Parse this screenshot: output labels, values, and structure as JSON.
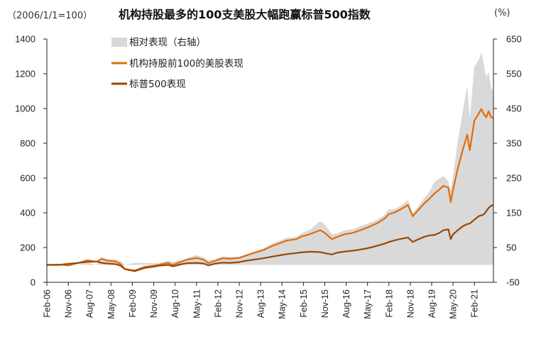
{
  "chart_data": {
    "type": "line",
    "title": "机构持股最多的100支美股大幅跑赢标普500指数",
    "base_note": "（2006/1/1=100）",
    "right_unit": "(%)",
    "y_left": {
      "min": 0,
      "max": 1400,
      "ticks": [
        "0",
        "200",
        "400",
        "600",
        "800",
        "1000",
        "1200",
        "1400"
      ]
    },
    "y_right": {
      "min": -50,
      "max": 650,
      "ticks": [
        "-50",
        "50",
        "150",
        "250",
        "350",
        "450",
        "550",
        "650"
      ]
    },
    "x_range": [
      2006.083,
      2021.75
    ],
    "x_ticks": [
      {
        "label": "Feb-06",
        "t": 2006.083
      },
      {
        "label": "Nov-06",
        "t": 2006.833
      },
      {
        "label": "Aug-07",
        "t": 2007.583
      },
      {
        "label": "May-08",
        "t": 2008.333
      },
      {
        "label": "Feb-09",
        "t": 2009.083
      },
      {
        "label": "Nov-09",
        "t": 2009.833
      },
      {
        "label": "Aug-10",
        "t": 2010.583
      },
      {
        "label": "May-11",
        "t": 2011.333
      },
      {
        "label": "Feb-12",
        "t": 2012.083
      },
      {
        "label": "Nov-12",
        "t": 2012.833
      },
      {
        "label": "Aug-13",
        "t": 2013.583
      },
      {
        "label": "May-14",
        "t": 2014.333
      },
      {
        "label": "Feb-15",
        "t": 2015.083
      },
      {
        "label": "Nov-15",
        "t": 2015.833
      },
      {
        "label": "Aug-16",
        "t": 2016.583
      },
      {
        "label": "May-17",
        "t": 2017.333
      },
      {
        "label": "Feb-18",
        "t": 2018.083
      },
      {
        "label": "Nov-18",
        "t": 2018.833
      },
      {
        "label": "Aug-19",
        "t": 2019.583
      },
      {
        "label": "May-20",
        "t": 2020.333
      },
      {
        "label": "Feb-21",
        "t": 2021.083
      }
    ],
    "legend": [
      "相对表现（右轴）",
      "机构持股前100的美股表现",
      "标普500表现"
    ],
    "colors": {
      "relative": "#d9d9d9",
      "top100": "#e36c0a",
      "sp500": "#974806"
    },
    "series": [
      {
        "name": "机构持股前100的美股表现",
        "axis": "left",
        "points": [
          [
            2006.08,
            100
          ],
          [
            2006.5,
            102
          ],
          [
            2006.83,
            98
          ],
          [
            2007.2,
            112
          ],
          [
            2007.5,
            127
          ],
          [
            2007.83,
            118
          ],
          [
            2008.0,
            135
          ],
          [
            2008.2,
            125
          ],
          [
            2008.5,
            120
          ],
          [
            2008.67,
            105
          ],
          [
            2008.83,
            75
          ],
          [
            2009.0,
            72
          ],
          [
            2009.17,
            68
          ],
          [
            2009.5,
            88
          ],
          [
            2009.83,
            95
          ],
          [
            2010.0,
            100
          ],
          [
            2010.33,
            112
          ],
          [
            2010.5,
            100
          ],
          [
            2010.83,
            120
          ],
          [
            2011.0,
            130
          ],
          [
            2011.33,
            140
          ],
          [
            2011.58,
            130
          ],
          [
            2011.75,
            110
          ],
          [
            2012.0,
            125
          ],
          [
            2012.25,
            138
          ],
          [
            2012.5,
            135
          ],
          [
            2012.83,
            140
          ],
          [
            2013.0,
            150
          ],
          [
            2013.33,
            168
          ],
          [
            2013.67,
            185
          ],
          [
            2014.0,
            210
          ],
          [
            2014.25,
            225
          ],
          [
            2014.5,
            240
          ],
          [
            2014.83,
            248
          ],
          [
            2015.0,
            262
          ],
          [
            2015.33,
            278
          ],
          [
            2015.67,
            300
          ],
          [
            2015.83,
            285
          ],
          [
            2016.08,
            248
          ],
          [
            2016.25,
            260
          ],
          [
            2016.5,
            275
          ],
          [
            2016.83,
            285
          ],
          [
            2017.0,
            295
          ],
          [
            2017.33,
            315
          ],
          [
            2017.67,
            340
          ],
          [
            2017.92,
            365
          ],
          [
            2018.08,
            392
          ],
          [
            2018.25,
            400
          ],
          [
            2018.5,
            420
          ],
          [
            2018.75,
            445
          ],
          [
            2018.92,
            380
          ],
          [
            2019.08,
            410
          ],
          [
            2019.33,
            455
          ],
          [
            2019.5,
            480
          ],
          [
            2019.67,
            510
          ],
          [
            2019.83,
            530
          ],
          [
            2020.0,
            555
          ],
          [
            2020.17,
            545
          ],
          [
            2020.25,
            462
          ],
          [
            2020.33,
            530
          ],
          [
            2020.5,
            655
          ],
          [
            2020.67,
            760
          ],
          [
            2020.83,
            850
          ],
          [
            2020.92,
            760
          ],
          [
            2021.08,
            930
          ],
          [
            2021.25,
            975
          ],
          [
            2021.33,
            998
          ],
          [
            2021.42,
            965
          ],
          [
            2021.5,
            950
          ],
          [
            2021.58,
            985
          ],
          [
            2021.67,
            950
          ],
          [
            2021.75,
            945
          ]
        ]
      },
      {
        "name": "标普500表现",
        "axis": "left",
        "points": [
          [
            2006.08,
            100
          ],
          [
            2006.5,
            100
          ],
          [
            2006.83,
            106
          ],
          [
            2007.2,
            112
          ],
          [
            2007.5,
            118
          ],
          [
            2007.83,
            119
          ],
          [
            2008.0,
            112
          ],
          [
            2008.2,
            108
          ],
          [
            2008.5,
            104
          ],
          [
            2008.67,
            95
          ],
          [
            2008.83,
            75
          ],
          [
            2009.0,
            70
          ],
          [
            2009.17,
            64
          ],
          [
            2009.5,
            82
          ],
          [
            2009.83,
            90
          ],
          [
            2010.0,
            95
          ],
          [
            2010.33,
            100
          ],
          [
            2010.5,
            92
          ],
          [
            2010.83,
            105
          ],
          [
            2011.0,
            110
          ],
          [
            2011.33,
            112
          ],
          [
            2011.58,
            108
          ],
          [
            2011.75,
            97
          ],
          [
            2012.0,
            108
          ],
          [
            2012.25,
            113
          ],
          [
            2012.5,
            112
          ],
          [
            2012.83,
            116
          ],
          [
            2013.0,
            122
          ],
          [
            2013.33,
            130
          ],
          [
            2013.67,
            138
          ],
          [
            2014.0,
            148
          ],
          [
            2014.25,
            155
          ],
          [
            2014.5,
            162
          ],
          [
            2014.83,
            168
          ],
          [
            2015.0,
            172
          ],
          [
            2015.33,
            176
          ],
          [
            2015.67,
            174
          ],
          [
            2015.83,
            168
          ],
          [
            2016.08,
            160
          ],
          [
            2016.25,
            170
          ],
          [
            2016.5,
            176
          ],
          [
            2016.83,
            182
          ],
          [
            2017.0,
            186
          ],
          [
            2017.33,
            196
          ],
          [
            2017.67,
            210
          ],
          [
            2017.92,
            222
          ],
          [
            2018.08,
            232
          ],
          [
            2018.25,
            240
          ],
          [
            2018.5,
            250
          ],
          [
            2018.75,
            258
          ],
          [
            2018.92,
            232
          ],
          [
            2019.08,
            245
          ],
          [
            2019.33,
            262
          ],
          [
            2019.5,
            270
          ],
          [
            2019.67,
            272
          ],
          [
            2019.83,
            282
          ],
          [
            2020.0,
            300
          ],
          [
            2020.17,
            305
          ],
          [
            2020.25,
            248
          ],
          [
            2020.33,
            275
          ],
          [
            2020.5,
            300
          ],
          [
            2020.67,
            322
          ],
          [
            2020.83,
            335
          ],
          [
            2020.92,
            338
          ],
          [
            2021.08,
            360
          ],
          [
            2021.25,
            382
          ],
          [
            2021.33,
            385
          ],
          [
            2021.42,
            392
          ],
          [
            2021.5,
            410
          ],
          [
            2021.58,
            428
          ],
          [
            2021.67,
            440
          ],
          [
            2021.75,
            445
          ]
        ]
      },
      {
        "name": "相对表现（右轴）",
        "axis": "right",
        "points": [
          [
            2006.08,
            0
          ],
          [
            2006.5,
            2
          ],
          [
            2006.83,
            -5
          ],
          [
            2007.2,
            0
          ],
          [
            2007.5,
            9
          ],
          [
            2007.83,
            -1
          ],
          [
            2008.0,
            23
          ],
          [
            2008.2,
            17
          ],
          [
            2008.5,
            16
          ],
          [
            2008.67,
            11
          ],
          [
            2008.83,
            0
          ],
          [
            2009.0,
            3
          ],
          [
            2009.17,
            6
          ],
          [
            2009.5,
            6
          ],
          [
            2009.83,
            5
          ],
          [
            2010.0,
            5
          ],
          [
            2010.33,
            12
          ],
          [
            2010.5,
            9
          ],
          [
            2010.83,
            15
          ],
          [
            2011.0,
            20
          ],
          [
            2011.33,
            28
          ],
          [
            2011.58,
            22
          ],
          [
            2011.75,
            13
          ],
          [
            2012.0,
            16
          ],
          [
            2012.25,
            25
          ],
          [
            2012.5,
            23
          ],
          [
            2012.83,
            24
          ],
          [
            2013.0,
            28
          ],
          [
            2013.33,
            38
          ],
          [
            2013.67,
            47
          ],
          [
            2014.0,
            62
          ],
          [
            2014.25,
            70
          ],
          [
            2014.5,
            78
          ],
          [
            2014.83,
            80
          ],
          [
            2015.0,
            90
          ],
          [
            2015.33,
            102
          ],
          [
            2015.67,
            126
          ],
          [
            2015.83,
            117
          ],
          [
            2016.08,
            88
          ],
          [
            2016.25,
            90
          ],
          [
            2016.5,
            99
          ],
          [
            2016.83,
            103
          ],
          [
            2017.0,
            109
          ],
          [
            2017.33,
            119
          ],
          [
            2017.67,
            130
          ],
          [
            2017.92,
            143
          ],
          [
            2018.08,
            160
          ],
          [
            2018.25,
            160
          ],
          [
            2018.5,
            170
          ],
          [
            2018.75,
            187
          ],
          [
            2018.92,
            148
          ],
          [
            2019.08,
            165
          ],
          [
            2019.33,
            193
          ],
          [
            2019.5,
            210
          ],
          [
            2019.67,
            238
          ],
          [
            2019.83,
            248
          ],
          [
            2020.0,
            255
          ],
          [
            2020.17,
            240
          ],
          [
            2020.25,
            214
          ],
          [
            2020.33,
            255
          ],
          [
            2020.5,
            355
          ],
          [
            2020.67,
            438
          ],
          [
            2020.83,
            515
          ],
          [
            2020.92,
            422
          ],
          [
            2021.08,
            570
          ],
          [
            2021.25,
            593
          ],
          [
            2021.33,
            613
          ],
          [
            2021.42,
            573
          ],
          [
            2021.5,
            540
          ],
          [
            2021.58,
            557
          ],
          [
            2021.67,
            510
          ],
          [
            2021.75,
            500
          ]
        ]
      }
    ]
  }
}
